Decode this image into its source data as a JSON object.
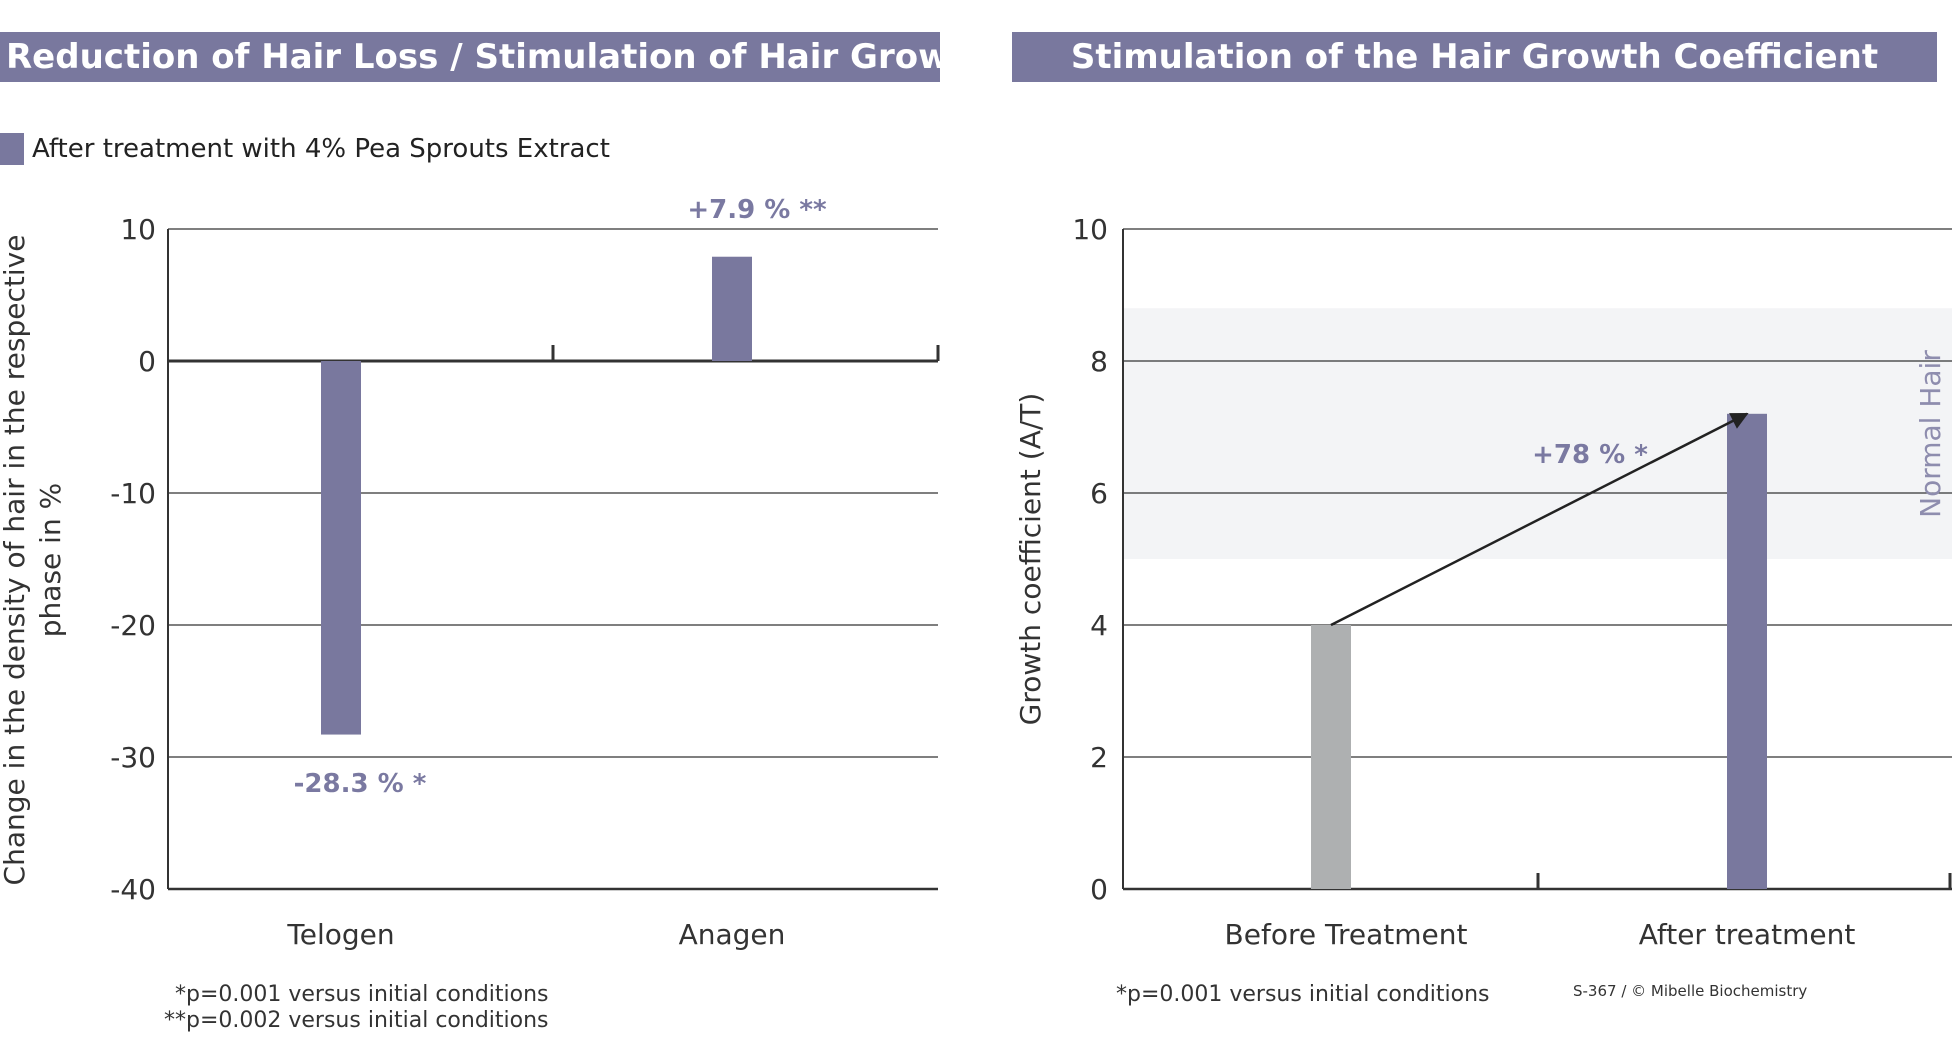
{
  "banners": {
    "left": "Reduction of Hair Loss / Stimulation of Hair Growth",
    "right": "Stimulation of the Hair Growth Coefficient"
  },
  "legend": {
    "label": "After treatment with 4% Pea Sprouts Extract",
    "color": "#79789e"
  },
  "footnotes": {
    "left": [
      "*p=0.001 versus initial conditions",
      "**p=0.002 versus initial conditions"
    ],
    "right": "*p=0.001 versus initial conditions",
    "copyright": "S-367 / © Mibelle Biochemistry"
  },
  "chart_data": [
    {
      "type": "bar",
      "title": "Reduction of Hair Loss / Stimulation of Hair Growth",
      "categories": [
        "Telogen",
        "Anagen"
      ],
      "series": [
        {
          "name": "After treatment with 4% Pea Sprouts Extract",
          "values": [
            -28.3,
            7.9
          ],
          "color": "#79789e"
        }
      ],
      "data_labels": [
        "-28.3 % *",
        "+7.9 % **"
      ],
      "ylabel_lines": [
        "Change in the density of hair in the respective",
        "phase in %"
      ],
      "xlabel": "",
      "ylim": [
        -40,
        10
      ],
      "yticks": [
        10,
        0,
        -10,
        -20,
        -30,
        -40
      ],
      "grid": true,
      "legend_position": "top-left"
    },
    {
      "type": "bar",
      "title": "Stimulation of the Hair Growth Coefficient",
      "categories": [
        "Before Treatment",
        "After treatment"
      ],
      "values": [
        4,
        7.2
      ],
      "colors": [
        "#aeb0b1",
        "#79789e"
      ],
      "ylabel": "Growth coefficient (A/T)",
      "xlabel": "",
      "ylim": [
        0,
        10
      ],
      "yticks": [
        0,
        2,
        4,
        6,
        8,
        10
      ],
      "grid": true,
      "reference_band": {
        "label": "Normal Hair",
        "range": [
          5,
          8.8
        ],
        "color": "#f3f4f6"
      },
      "annotation": {
        "label": "+78 % *",
        "from": 4,
        "to": 7.2
      }
    }
  ]
}
